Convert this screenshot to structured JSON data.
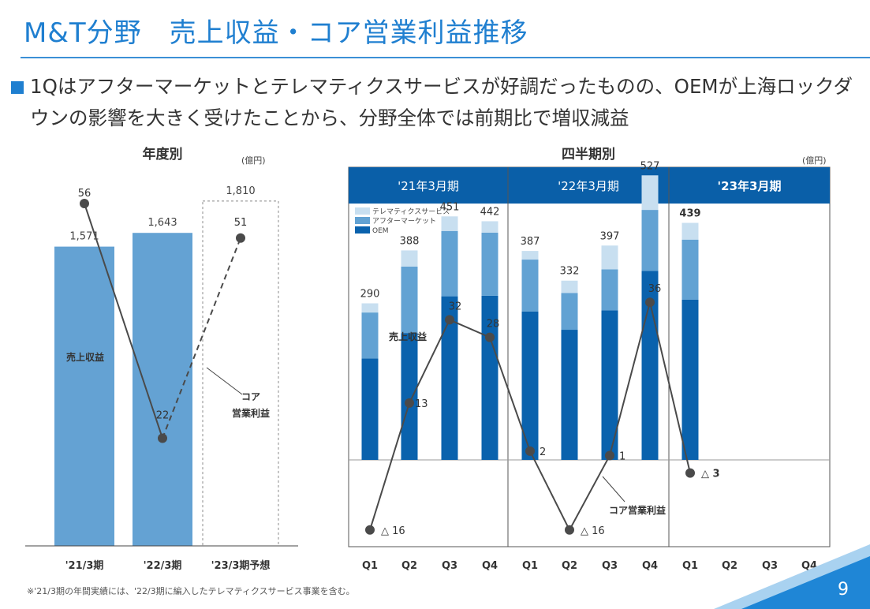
{
  "title": "M&T分野　売上収益・コア営業利益推移",
  "bullet": "1Qはアフターマーケットとテレマティクスサービスが好調だったものの、OEMが上海ロックダウンの影響を大きく受けたことから、分野全体では前期比で増収減益",
  "footnote": "※'21/3期の年間実績には、'22/3期に編入したテレマティクスサービス事業を含む。",
  "page_number": "9",
  "colors": {
    "title_blue": "#1f7fd0",
    "header_blue": "#0a5fa8",
    "oem": "#0a62ad",
    "aftermarket": "#62a2d3",
    "telematics": "#c8dff0",
    "annual_bar": "#64a2d3",
    "line": "#4a4a4a"
  },
  "chart_data": [
    {
      "type": "bar",
      "title": "年度別",
      "unit": "(億円)",
      "categories": [
        "'21/3期",
        "'22/3期",
        "'23/3期予想"
      ],
      "revenue_label": "売上収益",
      "revenue": [
        1571,
        1643,
        1810
      ],
      "revenue_labels": [
        "1,571",
        "1,643",
        "1,810"
      ],
      "forecast_index": 2,
      "profit_label": "コア\n営業利益",
      "core_profit": [
        56,
        22,
        51
      ],
      "core_profit_labels": [
        "56",
        "22",
        "51"
      ],
      "legend": "none"
    },
    {
      "type": "bar",
      "title": "四半期別",
      "unit": "(億円)",
      "periods": [
        "'21年3月期",
        "'22年3月期",
        "'23年3月期"
      ],
      "quarters": [
        "Q1",
        "Q2",
        "Q3",
        "Q4",
        "Q1",
        "Q2",
        "Q3",
        "Q4",
        "Q1",
        "Q2",
        "Q3",
        "Q4"
      ],
      "legend": "top-left",
      "series": [
        {
          "name": "テレマティクスサービス",
          "values": [
            17,
            30,
            27,
            21,
            16,
            23,
            44,
            64,
            31
          ]
        },
        {
          "name": "アフターマーケット",
          "values": [
            85,
            123,
            121,
            117,
            96,
            68,
            76,
            113,
            111
          ]
        },
        {
          "name": "OEM",
          "values": [
            188,
            235,
            303,
            304,
            275,
            241,
            277,
            350,
            297
          ]
        }
      ],
      "totals": [
        290,
        388,
        451,
        442,
        387,
        332,
        397,
        527,
        439
      ],
      "total_labels": [
        "290",
        "388",
        "451",
        "442",
        "387",
        "332",
        "397",
        "527",
        "439"
      ],
      "revenue_label": "売上収益",
      "profit_label": "コア営業利益",
      "core_profit": [
        -16,
        13,
        32,
        28,
        2,
        -16,
        1,
        36,
        -3
      ],
      "core_profit_labels": [
        "△ 16",
        "13",
        "32",
        "28",
        "2",
        "△ 16",
        "1",
        "36",
        "△ 3"
      ]
    }
  ]
}
